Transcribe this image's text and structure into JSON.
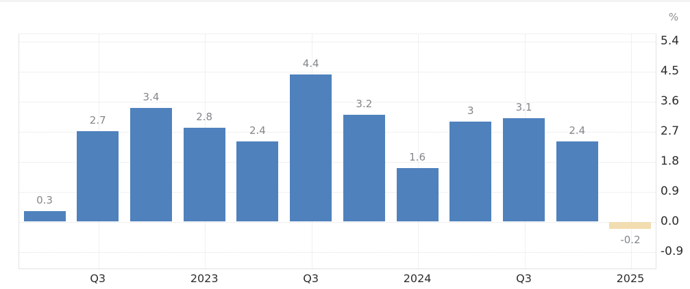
{
  "chart_data": {
    "type": "bar",
    "title": "",
    "xlabel": "",
    "ylabel": "",
    "unit_label": "%",
    "values": [
      0.3,
      2.7,
      3.4,
      2.8,
      2.4,
      4.4,
      3.2,
      1.6,
      3,
      3.1,
      2.4,
      -0.2
    ],
    "bar_labels": [
      "0.3",
      "2.7",
      "3.4",
      "2.8",
      "2.4",
      "4.4",
      "3.2",
      "1.6",
      "3",
      "3.1",
      "2.4",
      "-0.2"
    ],
    "x_ticks": [
      {
        "index": 1,
        "label": "Q3"
      },
      {
        "index": 3,
        "label": "2023"
      },
      {
        "index": 5,
        "label": "Q3"
      },
      {
        "index": 7,
        "label": "2024"
      },
      {
        "index": 9,
        "label": "Q3"
      },
      {
        "index": 11,
        "label": "2025"
      }
    ],
    "y_ticks": [
      {
        "value": 5.4,
        "label": "5.4"
      },
      {
        "value": 4.5,
        "label": "4.5"
      },
      {
        "value": 3.6,
        "label": "3.6"
      },
      {
        "value": 2.7,
        "label": "2.7"
      },
      {
        "value": 1.8,
        "label": "1.8"
      },
      {
        "value": 0.9,
        "label": "0.9"
      },
      {
        "value": 0.0,
        "label": "0.0"
      },
      {
        "value": -0.9,
        "label": "-0.9"
      }
    ],
    "grid": "dotted",
    "legend_position": "none",
    "colors": {
      "bar": "#4f81bd",
      "highlight_last_bar": "#f2ddb0",
      "value_label": "#83868a",
      "axis_label": "#2b2b2b",
      "unit_label": "#8a8d90",
      "gridline": "#e2e2e2",
      "plot_border": "#e0e0e0"
    }
  }
}
